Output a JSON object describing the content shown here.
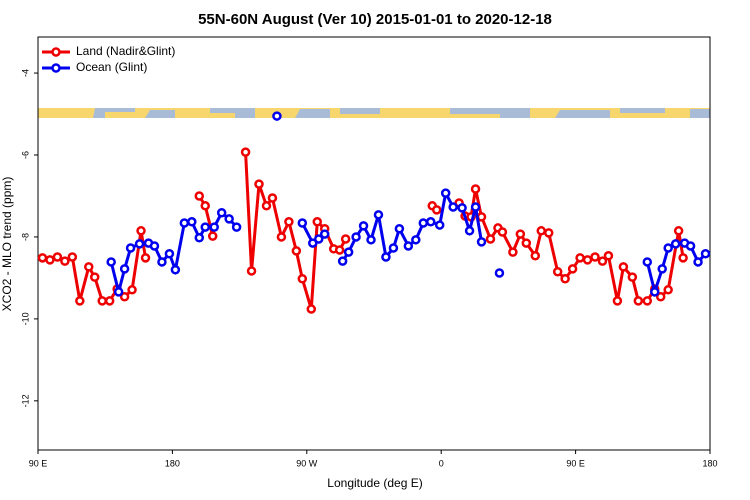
{
  "chart_data": {
    "type": "line",
    "title": "55N-60N August (Ver 10)   2015-01-01 to 2020-12-18",
    "x_label": "Longitude (deg E)",
    "y_label": "XCO2 - MLO trend (ppm)",
    "xlim": [
      90,
      540
    ],
    "xticks": [
      {
        "value": 90,
        "label": "90 E"
      },
      180,
      {
        "value": 270,
        "label": "90 W"
      },
      {
        "value": 360,
        "label": "0"
      },
      {
        "value": 450,
        "label": "90 E"
      },
      {
        "value": 540,
        "label": "180"
      }
    ],
    "ylim": [
      -13.2,
      -3.12
    ],
    "yticks": [
      -4,
      -6,
      -8,
      -10,
      -12
    ],
    "legend": "top-left",
    "series": [
      {
        "name": "Land (Nadir&Glint)",
        "color": "#ee0000",
        "x": [
          93,
          98,
          103,
          108,
          113,
          118,
          124,
          128,
          133,
          138,
          143,
          148,
          153,
          159,
          162,
          null,
          198,
          202,
          207,
          null,
          229,
          233,
          238,
          243,
          247,
          253,
          258,
          263,
          267,
          273,
          277,
          282,
          288,
          292,
          296,
          null,
          354,
          357,
          null,
          372,
          376,
          380,
          383,
          387,
          393,
          398,
          401,
          408,
          413,
          417,
          423,
          427,
          432,
          438,
          443,
          448,
          453,
          458,
          463,
          468,
          472,
          478,
          482,
          488,
          492,
          498,
          503,
          507,
          512,
          519,
          522
        ],
        "values": [
          -8.51,
          -8.56,
          -8.49,
          -8.59,
          -8.49,
          -9.56,
          -8.73,
          -8.98,
          -9.56,
          -9.56,
          -9.27,
          -9.46,
          -9.29,
          -7.85,
          -8.51,
          null,
          -7.0,
          -7.24,
          -7.98,
          null,
          -5.93,
          -8.83,
          -6.71,
          -7.24,
          -7.05,
          -8.0,
          -7.63,
          -8.34,
          -9.02,
          -9.76,
          -7.63,
          -7.8,
          -8.29,
          -8.32,
          -8.05,
          null,
          -7.24,
          -7.34,
          null,
          -7.17,
          -7.49,
          -7.51,
          -6.83,
          -7.51,
          -8.05,
          -7.78,
          -7.88,
          -8.37,
          -7.93,
          -8.15,
          -8.46,
          -7.85,
          -7.9,
          -8.85,
          -9.02,
          -8.78,
          -8.51,
          -8.56,
          -8.49,
          -8.59,
          -8.46,
          -9.56,
          -8.73,
          -8.98,
          -9.56,
          -9.56,
          -9.27,
          -9.46,
          -9.29,
          -7.85,
          -8.51
        ]
      },
      {
        "name": "Ocean (Glint)",
        "color": "#0000ee",
        "x": [
          139,
          144,
          148,
          152,
          158,
          164,
          168,
          173,
          178,
          182,
          188,
          193,
          198,
          202,
          208,
          213,
          218,
          223,
          null,
          250,
          null,
          267,
          274,
          278,
          282,
          null,
          294,
          298,
          303,
          308,
          313,
          318,
          323,
          328,
          332,
          338,
          343,
          348,
          353,
          359,
          363,
          368,
          374,
          379,
          383,
          387,
          null,
          399,
          null,
          498,
          503,
          508,
          512,
          517,
          523,
          527,
          532,
          537
        ],
        "values": [
          -8.61,
          -9.34,
          -8.78,
          -8.27,
          -8.17,
          -8.15,
          -8.22,
          -8.61,
          -8.41,
          -8.8,
          -7.66,
          -7.63,
          -8.02,
          -7.76,
          -7.76,
          -7.41,
          -7.56,
          -7.76,
          null,
          -5.05,
          null,
          -7.66,
          -8.15,
          -8.05,
          -7.93,
          null,
          -8.59,
          -8.37,
          -8.0,
          -7.73,
          -8.07,
          -7.46,
          -8.49,
          -8.27,
          -7.8,
          -8.22,
          -8.07,
          -7.66,
          -7.63,
          -7.71,
          -6.93,
          -7.27,
          -7.29,
          -7.85,
          -7.27,
          -8.12,
          null,
          -8.88,
          null,
          -8.61,
          -9.34,
          -8.78,
          -8.27,
          -8.17,
          -8.15,
          -8.22,
          -8.61,
          -8.41
        ]
      }
    ]
  }
}
